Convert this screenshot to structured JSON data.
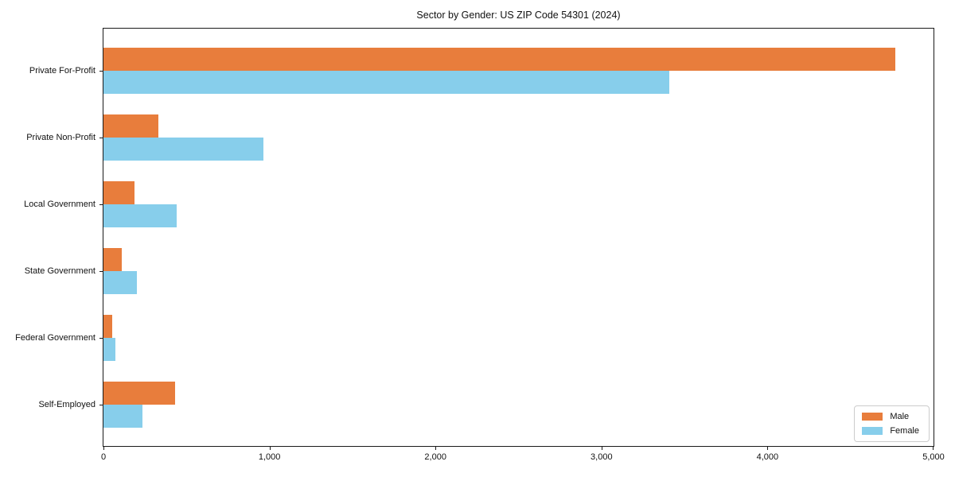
{
  "title": "Sector by Gender: US ZIP Code 54301 (2024)",
  "chart_data": {
    "type": "bar",
    "orientation": "horizontal",
    "title": "Sector by Gender: US ZIP Code 54301 (2024)",
    "categories": [
      "Private For-Profit",
      "Private Non-Profit",
      "Local Government",
      "State Government",
      "Federal Government",
      "Self-Employed"
    ],
    "series": [
      {
        "name": "Male",
        "color": "#e87d3c",
        "values": [
          4770,
          330,
          185,
          110,
          55,
          430
        ]
      },
      {
        "name": "Female",
        "color": "#87ceeb",
        "values": [
          3410,
          965,
          440,
          200,
          70,
          235
        ]
      }
    ],
    "xlabel": "",
    "ylabel": "",
    "xlim": [
      0,
      5000
    ],
    "xticks": [
      0,
      1000,
      2000,
      3000,
      4000,
      5000
    ],
    "xtick_labels": [
      "0",
      "1,000",
      "2,000",
      "3,000",
      "4,000",
      "5,000"
    ],
    "grid": false,
    "legend": {
      "position": "lower right"
    }
  }
}
